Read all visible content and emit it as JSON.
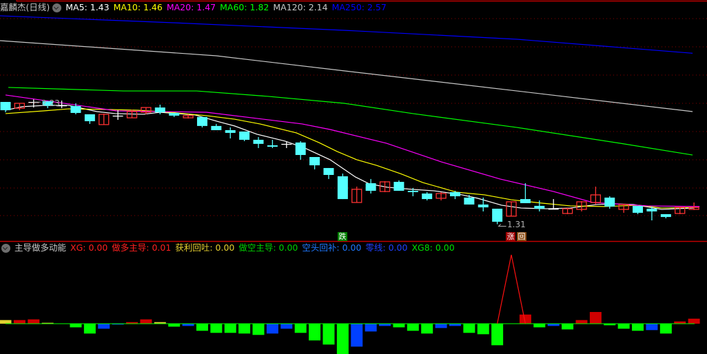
{
  "main_header": {
    "title": "嘉麟杰(日线)",
    "items": [
      {
        "label": "MA5: 1.43",
        "color": "#ffffff"
      },
      {
        "label": "MA10: 1.46",
        "color": "#ffff00"
      },
      {
        "label": "MA20: 1.47",
        "color": "#ff00ff"
      },
      {
        "label": "MA60: 1.82",
        "color": "#00ff00"
      },
      {
        "label": "MA120: 2.14",
        "color": "#c8c8c8"
      },
      {
        "label": "MA250: 2.57",
        "color": "#0000ff"
      }
    ]
  },
  "sub_header": {
    "title": "主导做多动能",
    "items": [
      {
        "label": "XG: 0.00",
        "color": "#ff2020"
      },
      {
        "label": "做多主导: 0.01",
        "color": "#ff2020"
      },
      {
        "label": "获利回吐: 0.00",
        "color": "#e6d030"
      },
      {
        "label": "做空主导: 0.00",
        "color": "#00d000"
      },
      {
        "label": "空头回补: 0.00",
        "color": "#1e78ff"
      },
      {
        "label": "零线: 0.00",
        "color": "#2040ff"
      },
      {
        "label": "XG8: 0.00",
        "color": "#00e000"
      }
    ]
  },
  "annotations": {
    "high_label": "2.23",
    "low_label": "1.31",
    "signal_die": "跌",
    "signal_zhang": "涨",
    "signal_hui": "回"
  },
  "colors": {
    "up": "#ff3232",
    "down": "#54ffff",
    "flat": "#ffffff",
    "grid": "#8b0000",
    "separator": "#c00000",
    "bar_R": "#d00000",
    "bar_Y": "#e0d030",
    "bar_G": "#00ff00",
    "bar_B": "#0040ff",
    "zero_line": "#00ff00",
    "spike_line": "#ff1010"
  },
  "chart_data": [
    {
      "type": "candlestick",
      "ohlc": [
        [
          2.211,
          2.211,
          2.135,
          2.15
        ],
        [
          2.165,
          2.201,
          2.15,
          2.201
        ],
        [
          2.211,
          2.23,
          2.17,
          2.211
        ],
        [
          2.216,
          2.216,
          2.165,
          2.181
        ],
        [
          2.186,
          2.221,
          2.165,
          2.186
        ],
        [
          2.181,
          2.201,
          2.12,
          2.13
        ],
        [
          2.12,
          2.12,
          2.049,
          2.069
        ],
        [
          2.044,
          2.125,
          2.044,
          2.12
        ],
        [
          2.11,
          2.15,
          2.079,
          2.11
        ],
        [
          2.094,
          2.155,
          2.094,
          2.14
        ],
        [
          2.135,
          2.17,
          2.12,
          2.17
        ],
        [
          2.17,
          2.191,
          2.12,
          2.135
        ],
        [
          2.13,
          2.13,
          2.1,
          2.11
        ],
        [
          2.094,
          2.12,
          2.089,
          2.11
        ],
        [
          2.1,
          2.1,
          2.023,
          2.034
        ],
        [
          2.034,
          2.049,
          2.003,
          2.003
        ],
        [
          2.003,
          2.023,
          1.942,
          1.983
        ],
        [
          1.993,
          1.993,
          1.922,
          1.932
        ],
        [
          1.932,
          1.952,
          1.871,
          1.902
        ],
        [
          1.891,
          1.932,
          1.871,
          1.881
        ],
        [
          1.902,
          1.917,
          1.871,
          1.902
        ],
        [
          1.912,
          1.922,
          1.785,
          1.82
        ],
        [
          1.805,
          1.805,
          1.714,
          1.744
        ],
        [
          1.724,
          1.724,
          1.643,
          1.673
        ],
        [
          1.663,
          1.683,
          1.495,
          1.495
        ],
        [
          1.47,
          1.587,
          1.47,
          1.567
        ],
        [
          1.612,
          1.643,
          1.536,
          1.556
        ],
        [
          1.551,
          1.627,
          1.546,
          1.622
        ],
        [
          1.622,
          1.633,
          1.556,
          1.556
        ],
        [
          1.556,
          1.577,
          1.516,
          1.546
        ],
        [
          1.536,
          1.546,
          1.485,
          1.495
        ],
        [
          1.501,
          1.546,
          1.485,
          1.536
        ],
        [
          1.546,
          1.556,
          1.495,
          1.516
        ],
        [
          1.506,
          1.526,
          1.455,
          1.455
        ],
        [
          1.455,
          1.506,
          1.404,
          1.434
        ],
        [
          1.424,
          1.424,
          1.31,
          1.328
        ],
        [
          1.369,
          1.475,
          1.369,
          1.475
        ],
        [
          1.495,
          1.612,
          1.465,
          1.465
        ],
        [
          1.445,
          1.485,
          1.404,
          1.424
        ],
        [
          1.424,
          1.495,
          1.424,
          1.424
        ],
        [
          1.389,
          1.429,
          1.384,
          1.424
        ],
        [
          1.419,
          1.48,
          1.404,
          1.475
        ],
        [
          1.47,
          1.587,
          1.455,
          1.526
        ],
        [
          1.506,
          1.516,
          1.424,
          1.44
        ],
        [
          1.419,
          1.46,
          1.394,
          1.455
        ],
        [
          1.445,
          1.445,
          1.384,
          1.394
        ],
        [
          1.424,
          1.44,
          1.338,
          1.404
        ],
        [
          1.384,
          1.384,
          1.353,
          1.363
        ],
        [
          1.389,
          1.434,
          1.384,
          1.434
        ],
        [
          1.419,
          1.47,
          1.414,
          1.434
        ]
      ],
      "ohlc_order": [
        "open",
        "high",
        "low",
        "close"
      ],
      "ma_lines": [
        {
          "name": "MA5",
          "color": "#ffffff",
          "points": [
            [
              0,
              2.15
            ],
            [
              1.2,
              2.176
            ],
            [
              2.9,
              2.186
            ],
            [
              4.5,
              2.186
            ],
            [
              6.5,
              2.14
            ],
            [
              7.8,
              2.125
            ],
            [
              9.8,
              2.12
            ],
            [
              11.0,
              2.135
            ],
            [
              13.5,
              2.115
            ],
            [
              15.2,
              2.064
            ],
            [
              16.3,
              2.034
            ],
            [
              17.9,
              1.973
            ],
            [
              19.9,
              1.922
            ],
            [
              21.3,
              1.871
            ],
            [
              23.1,
              1.785
            ],
            [
              24.9,
              1.658
            ],
            [
              25.9,
              1.607
            ],
            [
              27.2,
              1.582
            ],
            [
              28.9,
              1.567
            ],
            [
              30.5,
              1.556
            ],
            [
              32.5,
              1.526
            ],
            [
              33.6,
              1.501
            ],
            [
              35.3,
              1.45
            ],
            [
              36.7,
              1.429
            ],
            [
              38.5,
              1.424
            ],
            [
              40.2,
              1.429
            ],
            [
              42.1,
              1.455
            ],
            [
              43.4,
              1.46
            ],
            [
              44.7,
              1.455
            ],
            [
              46.7,
              1.419
            ],
            [
              49.0,
              1.43
            ]
          ]
        },
        {
          "name": "MA10",
          "color": "#ffff00",
          "points": [
            [
              0,
              2.125
            ],
            [
              2.7,
              2.145
            ],
            [
              4.5,
              2.16
            ],
            [
              7.5,
              2.155
            ],
            [
              9.4,
              2.15
            ],
            [
              11.7,
              2.135
            ],
            [
              14.3,
              2.11
            ],
            [
              16.3,
              2.084
            ],
            [
              18.1,
              2.049
            ],
            [
              20.7,
              1.983
            ],
            [
              22.3,
              1.912
            ],
            [
              23.6,
              1.846
            ],
            [
              25.0,
              1.785
            ],
            [
              26.4,
              1.744
            ],
            [
              28.1,
              1.683
            ],
            [
              29.7,
              1.617
            ],
            [
              32.1,
              1.546
            ],
            [
              34.1,
              1.526
            ],
            [
              36.0,
              1.49
            ],
            [
              38.2,
              1.465
            ],
            [
              40.2,
              1.445
            ],
            [
              42.6,
              1.44
            ],
            [
              45.1,
              1.45
            ],
            [
              46.7,
              1.429
            ],
            [
              49.3,
              1.434
            ]
          ]
        },
        {
          "name": "MA20",
          "color": "#ff00ff",
          "points": [
            [
              0,
              2.262
            ],
            [
              4.5,
              2.196
            ],
            [
              7.9,
              2.145
            ],
            [
              14.3,
              2.135
            ],
            [
              21.1,
              2.049
            ],
            [
              23.1,
              2.008
            ],
            [
              27.1,
              1.907
            ],
            [
              31.0,
              1.77
            ],
            [
              35.2,
              1.643
            ],
            [
              39.0,
              1.551
            ],
            [
              41.8,
              1.47
            ],
            [
              45.7,
              1.445
            ],
            [
              49.4,
              1.44
            ]
          ]
        },
        {
          "name": "MA60",
          "color": "#00ff00",
          "points": [
            [
              0.2,
              2.318
            ],
            [
              8.4,
              2.292
            ],
            [
              13.6,
              2.292
            ],
            [
              18.7,
              2.252
            ],
            [
              24.1,
              2.201
            ],
            [
              29.0,
              2.125
            ],
            [
              36.4,
              2.023
            ],
            [
              43.7,
              1.907
            ],
            [
              48.9,
              1.82
            ]
          ]
        },
        {
          "name": "MA120",
          "color": "#c8c8c8",
          "points": [
            [
              -0.4,
              2.663
            ],
            [
              15.0,
              2.551
            ],
            [
              24.1,
              2.44
            ],
            [
              36.4,
              2.292
            ],
            [
              48.9,
              2.14
            ]
          ]
        },
        {
          "name": "MA250",
          "color": "#0000ff",
          "points": [
            [
              -0.4,
              2.846
            ],
            [
              11.9,
              2.795
            ],
            [
              24.1,
              2.739
            ],
            [
              36.4,
              2.673
            ],
            [
              48.9,
              2.57
            ]
          ]
        }
      ],
      "high_marker": {
        "index": 2,
        "value": 2.23
      },
      "low_marker": {
        "index": 35,
        "value": 1.31
      },
      "signals": [
        {
          "index": 24,
          "type": "跌"
        },
        {
          "index": 36,
          "type": "涨回"
        }
      ]
    },
    {
      "type": "bar",
      "title": "主导做多动能",
      "bars": [
        [
          5.3,
          "Y"
        ],
        [
          5.3,
          "R"
        ],
        [
          6.3,
          "R"
        ],
        [
          1.3,
          "Y"
        ],
        [
          0,
          "G"
        ],
        [
          -5.3,
          "G"
        ],
        [
          -14.3,
          "G"
        ],
        [
          -7.3,
          "B"
        ],
        [
          -1.3,
          "B"
        ],
        [
          2.3,
          "R"
        ],
        [
          6.3,
          "R"
        ],
        [
          2.3,
          "Y"
        ],
        [
          -4.3,
          "G"
        ],
        [
          -3.3,
          "B"
        ],
        [
          -10.3,
          "G"
        ],
        [
          -13.3,
          "G"
        ],
        [
          -13.3,
          "G"
        ],
        [
          -14.3,
          "G"
        ],
        [
          -16.3,
          "G"
        ],
        [
          -14.3,
          "B"
        ],
        [
          -7.3,
          "B"
        ],
        [
          -13.3,
          "G"
        ],
        [
          -24.3,
          "G"
        ],
        [
          -30.3,
          "G"
        ],
        [
          -44,
          "G"
        ],
        [
          -33.3,
          "B"
        ],
        [
          -11.3,
          "B"
        ],
        [
          -3.3,
          "B"
        ],
        [
          -5.3,
          "G"
        ],
        [
          -10.3,
          "G"
        ],
        [
          -14.3,
          "G"
        ],
        [
          -6.3,
          "B"
        ],
        [
          -3.3,
          "B"
        ],
        [
          -13.3,
          "G"
        ],
        [
          -15.3,
          "G"
        ],
        [
          -31.3,
          "G"
        ],
        [
          0,
          "G"
        ],
        [
          13.3,
          "R"
        ],
        [
          -5.3,
          "G"
        ],
        [
          -3.3,
          "B"
        ],
        [
          -8.3,
          "G"
        ],
        [
          5.3,
          "R"
        ],
        [
          17,
          "R"
        ],
        [
          -2.3,
          "G"
        ],
        [
          -7.3,
          "G"
        ],
        [
          -10.3,
          "G"
        ],
        [
          -9.3,
          "B"
        ],
        [
          -14.3,
          "G"
        ],
        [
          3.3,
          "R"
        ],
        [
          7.3,
          "R"
        ]
      ],
      "spike_line": [
        [
          35,
          0
        ],
        [
          36,
          100
        ],
        [
          37,
          0
        ]
      ]
    }
  ]
}
